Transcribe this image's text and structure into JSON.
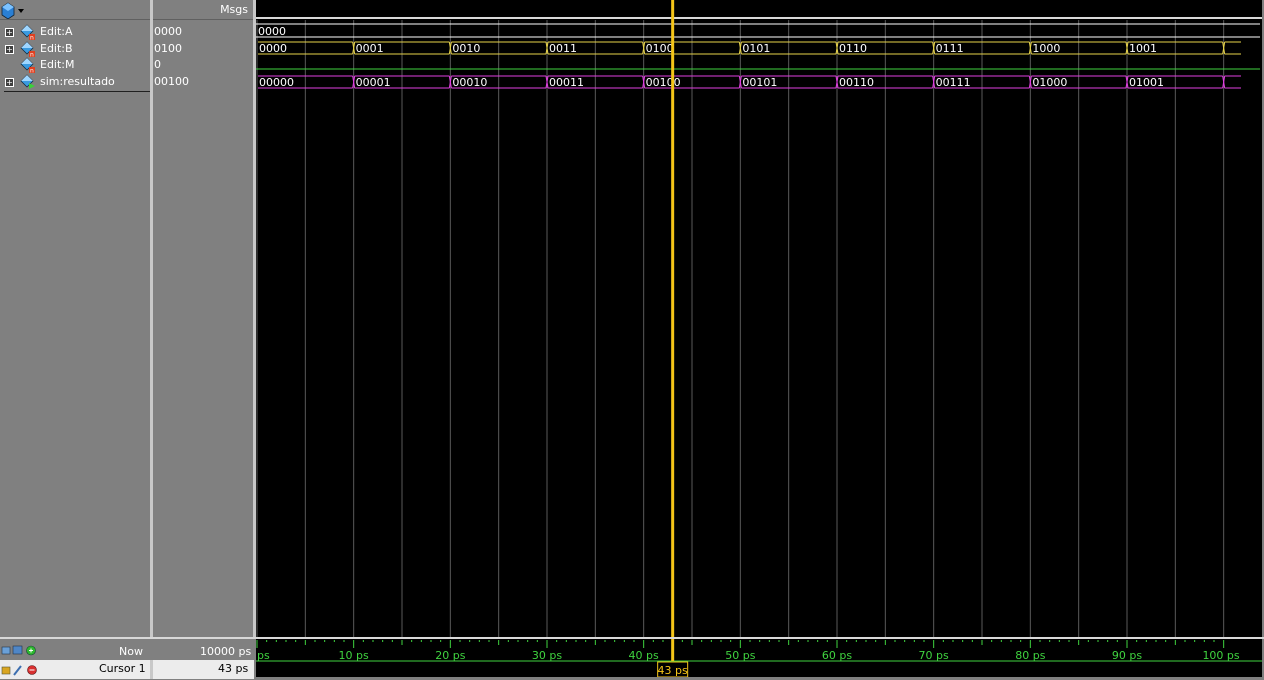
{
  "header": {
    "msgs_label": "Msgs"
  },
  "signals": [
    {
      "name": "Edit:A",
      "value": "0000",
      "expandable": true,
      "icon": "input-signal-icon"
    },
    {
      "name": "Edit:B",
      "value": "0100",
      "expandable": true,
      "icon": "input-signal-icon"
    },
    {
      "name": "Edit:M",
      "value": "0",
      "expandable": false,
      "icon": "input-signal-icon"
    },
    {
      "name": "sim:resultado",
      "value": "00100",
      "expandable": true,
      "icon": "output-signal-icon"
    }
  ],
  "waves": {
    "edit_a": {
      "color": "#ffffff",
      "segments": [
        {
          "start_ps": 0,
          "label": "0000"
        }
      ]
    },
    "edit_b": {
      "color": "#e8d44a",
      "segments": [
        {
          "start_ps": 0,
          "label": "0000"
        },
        {
          "start_ps": 10,
          "label": "0001"
        },
        {
          "start_ps": 20,
          "label": "0010"
        },
        {
          "start_ps": 30,
          "label": "0011"
        },
        {
          "start_ps": 40,
          "label": "0100"
        },
        {
          "start_ps": 50,
          "label": "0101"
        },
        {
          "start_ps": 60,
          "label": "0110"
        },
        {
          "start_ps": 70,
          "label": "0111"
        },
        {
          "start_ps": 80,
          "label": "1000"
        },
        {
          "start_ps": 90,
          "label": "1001"
        },
        {
          "start_ps": 100,
          "label": ""
        }
      ]
    },
    "edit_m": {
      "color": "#3fd33f"
    },
    "resultado": {
      "color": "#e040e0",
      "segments": [
        {
          "start_ps": 0,
          "label": "00000"
        },
        {
          "start_ps": 10,
          "label": "00001"
        },
        {
          "start_ps": 20,
          "label": "00010"
        },
        {
          "start_ps": 30,
          "label": "00011"
        },
        {
          "start_ps": 40,
          "label": "00100"
        },
        {
          "start_ps": 50,
          "label": "00101"
        },
        {
          "start_ps": 60,
          "label": "00110"
        },
        {
          "start_ps": 70,
          "label": "00111"
        },
        {
          "start_ps": 80,
          "label": "01000"
        },
        {
          "start_ps": 90,
          "label": "01001"
        },
        {
          "start_ps": 100,
          "label": ""
        }
      ]
    }
  },
  "timeline": {
    "start_ps": 0,
    "end_ps": 102,
    "major_ticks": [
      {
        "ps": 0,
        "label": "ps"
      },
      {
        "ps": 10,
        "label": "10 ps"
      },
      {
        "ps": 20,
        "label": "20 ps"
      },
      {
        "ps": 30,
        "label": "30 ps"
      },
      {
        "ps": 40,
        "label": "40 ps"
      },
      {
        "ps": 50,
        "label": "50 ps"
      },
      {
        "ps": 60,
        "label": "60 ps"
      },
      {
        "ps": 70,
        "label": "70 ps"
      },
      {
        "ps": 80,
        "label": "80 ps"
      },
      {
        "ps": 90,
        "label": "90 ps"
      },
      {
        "ps": 100,
        "label": "100 ps"
      }
    ]
  },
  "cursor": {
    "name": "Cursor 1",
    "time_ps": 43,
    "readout": "43 ps",
    "color": "#f5c518"
  },
  "status": {
    "now_label": "Now",
    "now_value": "10000 ps",
    "cursor_label": "Cursor 1",
    "cursor_value": "43 ps"
  }
}
